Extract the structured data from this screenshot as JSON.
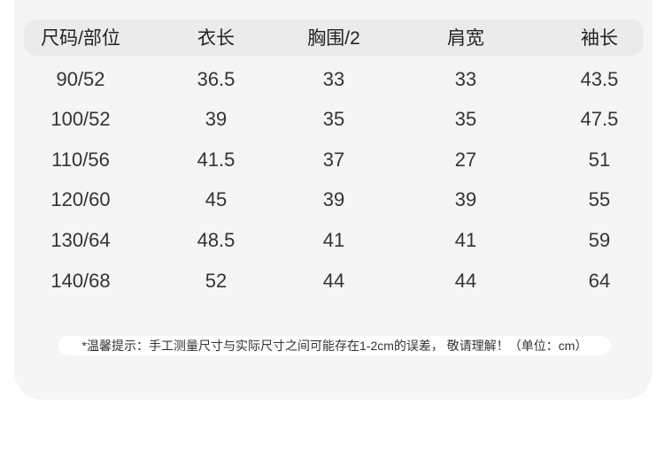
{
  "table": {
    "headers": [
      "尺码/部位",
      "衣长",
      "胸围/2",
      "肩宽",
      "袖长"
    ],
    "rows": [
      [
        "90/52",
        "36.5",
        "33",
        "33",
        "43.5"
      ],
      [
        "100/52",
        "39",
        "35",
        "35",
        "47.5"
      ],
      [
        "110/56",
        "41.5",
        "37",
        "27",
        "51"
      ],
      [
        "120/60",
        "45",
        "39",
        "39",
        "55"
      ],
      [
        "130/64",
        "48.5",
        "41",
        "41",
        "59"
      ],
      [
        "140/68",
        "52",
        "44",
        "44",
        "64"
      ]
    ]
  },
  "note": "*温馨提示：手工测量尺寸与实际尺寸之间可能存在1-2cm的误差， 敬请理解！（单位：cm）",
  "colors": {
    "panel": "#f5f5f5",
    "header": "#ebebeb",
    "text": "#333333"
  }
}
